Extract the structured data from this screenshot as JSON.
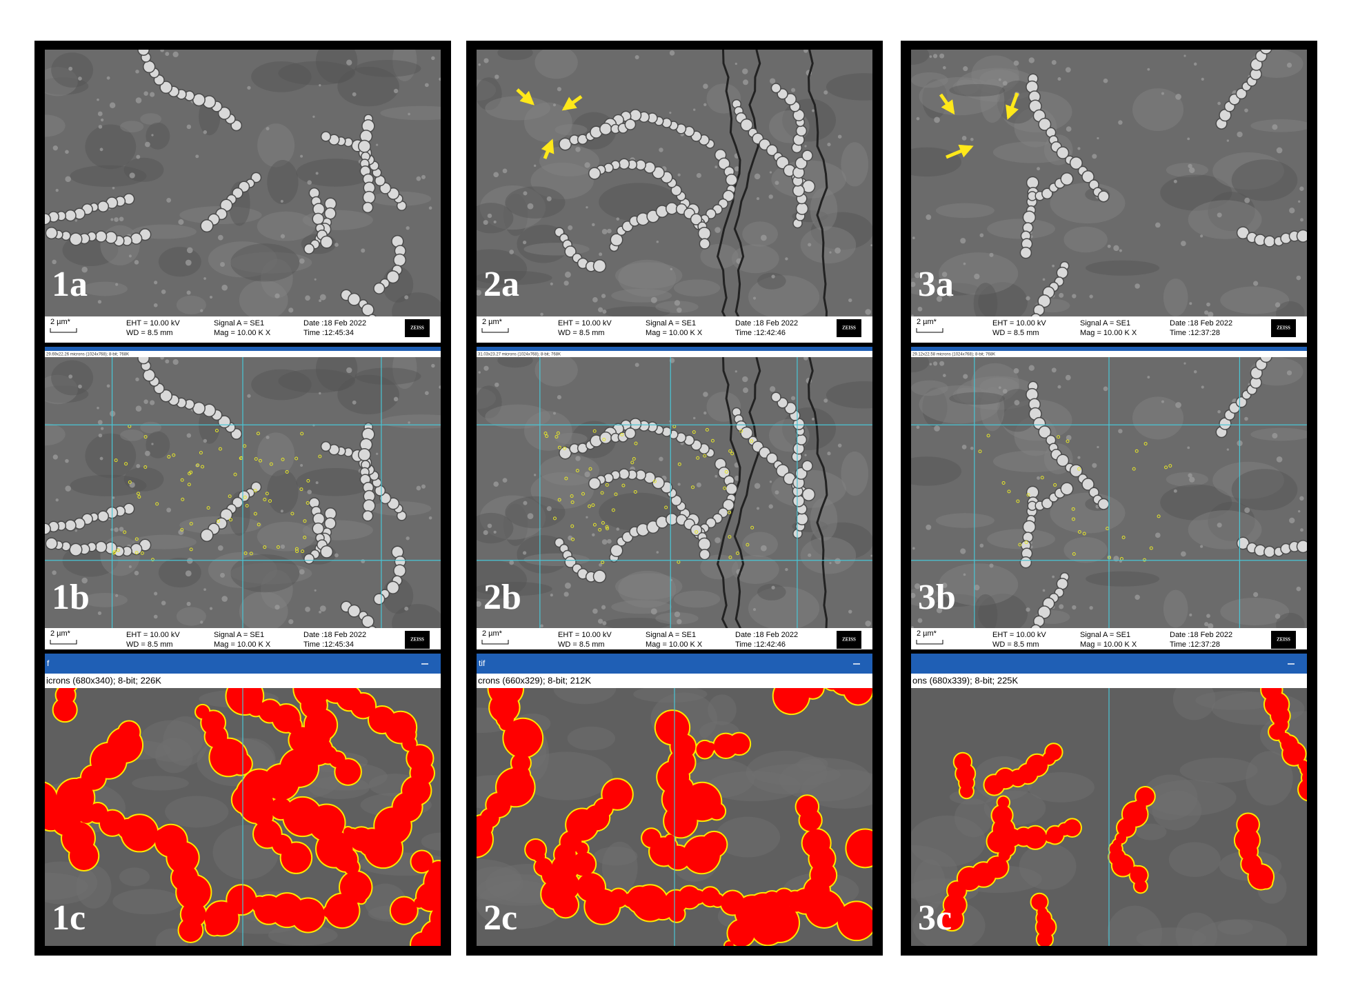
{
  "columns": [
    {
      "labels": {
        "a": "1a",
        "b": "1b",
        "c": "1c"
      },
      "info_a": {
        "scale": "2 µm*",
        "eht": "EHT = 10.00 kV",
        "wd": "WD = 8.5 mm",
        "signal": "Signal A = SE1",
        "mag": "Mag =  10.00 K X",
        "date": "Date :18 Feb 2022",
        "time": "Time :12:45:34",
        "logo": "ZEISS"
      },
      "info_b": {
        "scale": "2 µm*",
        "eht": "EHT = 10.00 kV",
        "wd": "WD = 8.5 mm",
        "signal": "Signal A = SE1",
        "mag": "Mag =  10.00 K X",
        "date": "Date :18 Feb 2022",
        "time": "Time :12:45:34",
        "logo": "ZEISS"
      },
      "strip_b": "29.69x22.26 microns (1024x768); 8-bit; 768K",
      "title_c": "f",
      "strip_c": "icrons (680x340); 8-bit; 226K"
    },
    {
      "labels": {
        "a": "2a",
        "b": "2b",
        "c": "2c"
      },
      "info_a": {
        "scale": "2 µm*",
        "eht": "EHT = 10.00 kV",
        "wd": "WD = 8.5 mm",
        "signal": "Signal A = SE1",
        "mag": "Mag =  10.00 K X",
        "date": "Date :18 Feb 2022",
        "time": "Time :12:42:46",
        "logo": "ZEISS"
      },
      "info_b": {
        "scale": "2 µm*",
        "eht": "EHT = 10.00 kV",
        "wd": "WD = 8.5 mm",
        "signal": "Signal A = SE1",
        "mag": "Mag =  10.00 K X",
        "date": "Date :18 Feb 2022",
        "time": "Time :12:42:46",
        "logo": "ZEISS"
      },
      "strip_b": "31.03x23.27 microns (1024x768); 8-bit; 768K",
      "title_c": "tif",
      "strip_c": "crons (660x329); 8-bit; 212K"
    },
    {
      "labels": {
        "a": "3a",
        "b": "3b",
        "c": "3c"
      },
      "info_a": {
        "scale": "2 µm*",
        "eht": "EHT = 10.00 kV",
        "wd": "WD = 8.5 mm",
        "signal": "Signal A = SE1",
        "mag": "Mag =  10.00 K X",
        "date": "Date :18 Feb 2022",
        "time": "Time :12:37:28",
        "logo": "ZEISS"
      },
      "info_b": {
        "scale": "2 µm*",
        "eht": "EHT = 10.00 kV",
        "wd": "WD = 8.5 mm",
        "signal": "Signal A = SE1",
        "mag": "Mag =  10.00 K X",
        "date": "Date :18 Feb 2022",
        "time": "Time :12:37:28",
        "logo": "ZEISS"
      },
      "strip_b": "29.12x22.58 microns (1024x768); 8-bit; 768K",
      "strip_c": "ons (680x339); 8-bit; 225K"
    }
  ]
}
